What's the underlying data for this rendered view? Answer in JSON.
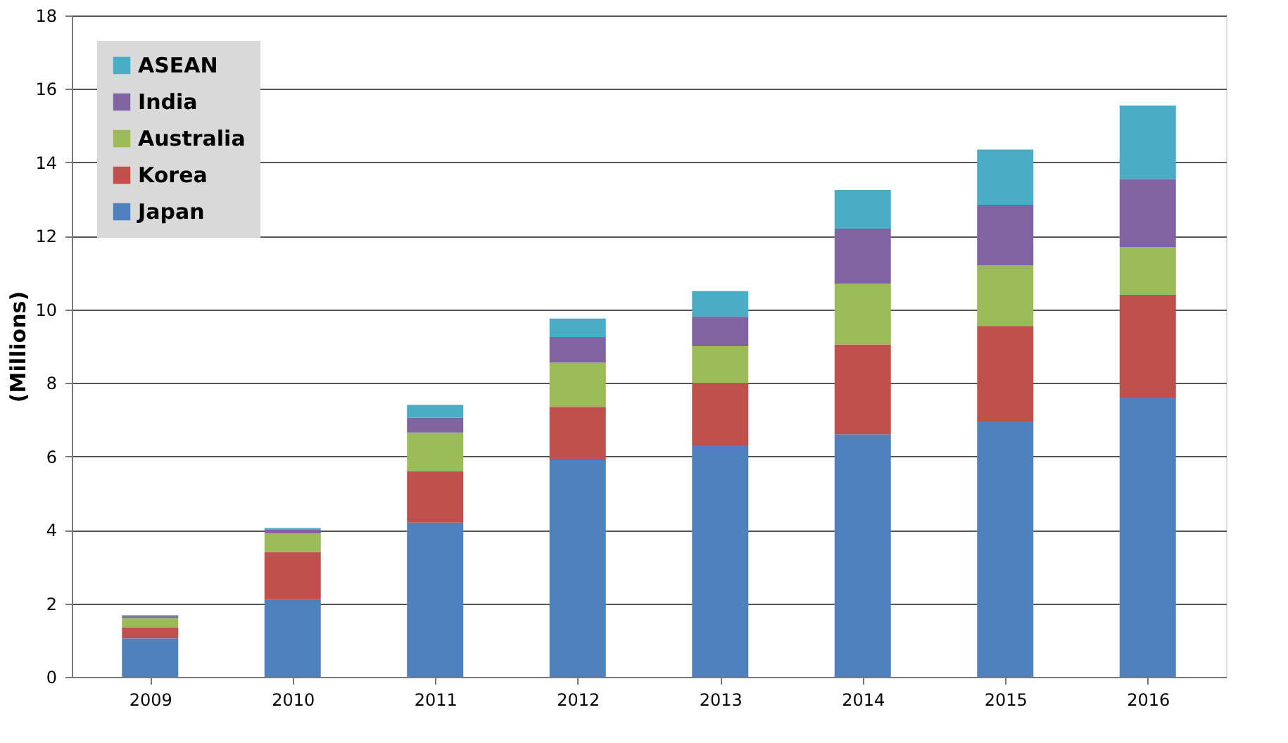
{
  "chart_data": {
    "type": "bar",
    "stacked": true,
    "ylabel": "(Millions)",
    "categories": [
      "2009",
      "2010",
      "2011",
      "2012",
      "2013",
      "2014",
      "2015",
      "2016"
    ],
    "series": [
      {
        "name": "Japan",
        "color": "#4f81bd",
        "values": [
          1.05,
          2.1,
          4.2,
          5.9,
          6.3,
          6.6,
          6.95,
          7.6
        ]
      },
      {
        "name": "Korea",
        "color": "#c0504d",
        "values": [
          0.3,
          1.3,
          1.4,
          1.45,
          1.7,
          2.45,
          2.6,
          2.8
        ]
      },
      {
        "name": "Australia",
        "color": "#9bbb59",
        "values": [
          0.25,
          0.5,
          1.05,
          1.2,
          1.0,
          1.65,
          1.65,
          1.3
        ]
      },
      {
        "name": "India",
        "color": "#8064a2",
        "values": [
          0.05,
          0.1,
          0.4,
          0.7,
          0.8,
          1.5,
          1.65,
          1.85
        ]
      },
      {
        "name": "ASEAN",
        "color": "#4bacc6",
        "values": [
          0.03,
          0.05,
          0.35,
          0.5,
          0.7,
          1.05,
          1.5,
          2.0
        ]
      }
    ],
    "ylim": [
      0,
      18
    ],
    "yticks": [
      0,
      2,
      4,
      6,
      8,
      10,
      12,
      14,
      16,
      18
    ],
    "grid": "y",
    "legend": "top left"
  }
}
